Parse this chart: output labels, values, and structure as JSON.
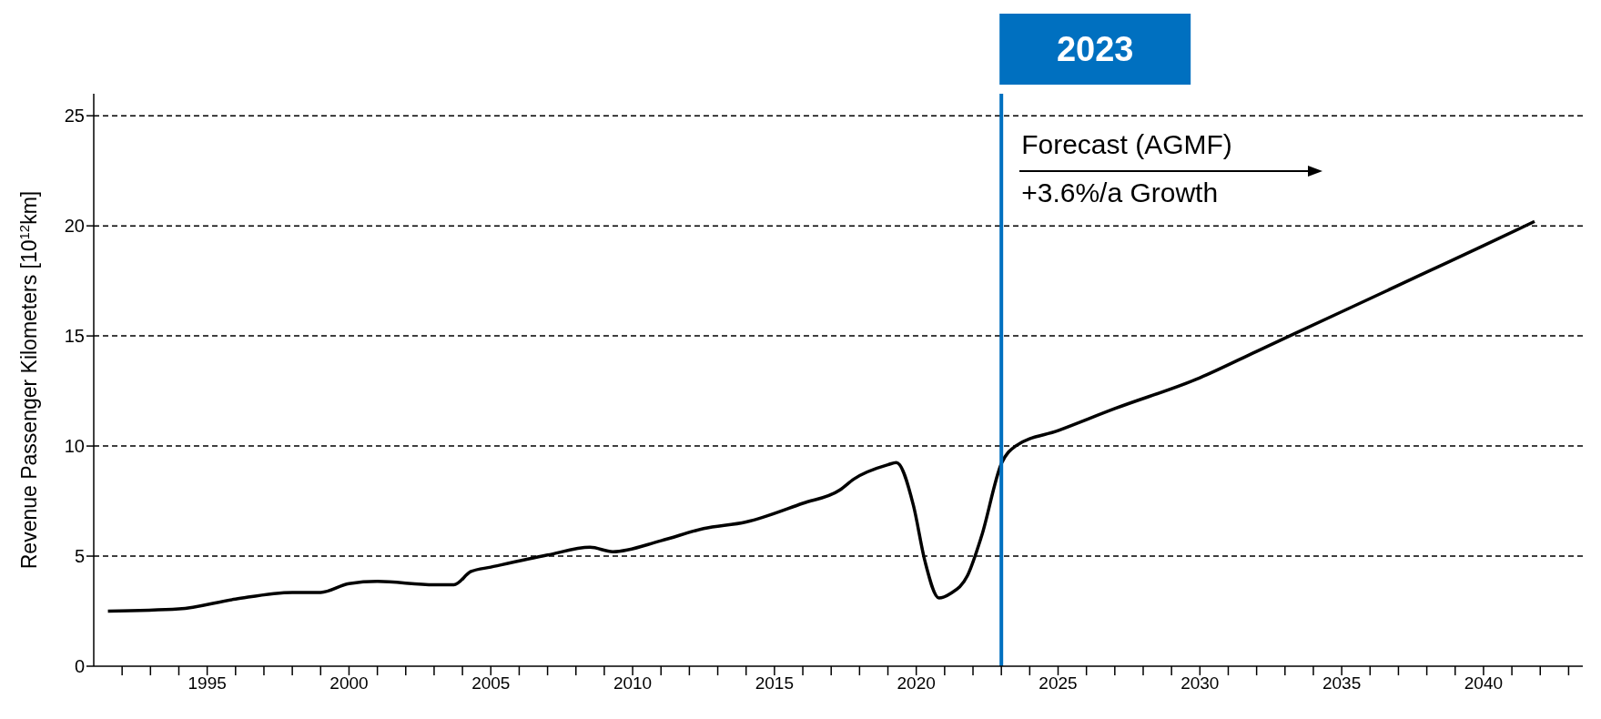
{
  "chart_data": {
    "type": "line",
    "ylabel": "Revenue Passenger Kilometers [10$^{12}$km]",
    "x": [
      1991.5,
      1994,
      1996,
      1998,
      1999,
      2000,
      2001,
      2003,
      2003.7,
      2004.3,
      2005,
      2007,
      2008.5,
      2009.3,
      2011,
      2012.5,
      2014,
      2016,
      2017.3,
      2017.8,
      2019,
      2019.3,
      2019.9,
      2020.3,
      2020.8,
      2021.2,
      2021.8,
      2022.3,
      2023,
      2023.5,
      2025,
      2027,
      2030,
      2032,
      2035,
      2038,
      2040,
      2041.8
    ],
    "series": [
      {
        "color": "#000000",
        "values": [
          2.5,
          2.6,
          3.05,
          3.35,
          3.35,
          3.75,
          3.85,
          3.7,
          3.7,
          4.3,
          4.5,
          5.05,
          5.4,
          5.2,
          5.7,
          6.25,
          6.55,
          7.4,
          8.0,
          8.5,
          9.15,
          9.25,
          7.3,
          4.8,
          3.1,
          3.3,
          4.1,
          5.9,
          9.2,
          10.0,
          10.7,
          11.7,
          13.1,
          14.3,
          16.1,
          17.9,
          19.1,
          20.2
        ]
      }
    ],
    "xlim": [
      1991,
      2043.5
    ],
    "xticks": [
      {
        "value": 1992,
        "label": null
      },
      {
        "value": 1993,
        "label": null
      },
      {
        "value": 1994,
        "label": null
      },
      1995,
      {
        "value": 1996,
        "label": null
      },
      {
        "value": 1997,
        "label": null
      },
      {
        "value": 1998,
        "label": null
      },
      {
        "value": 1999,
        "label": null
      },
      2000,
      {
        "value": 2001,
        "label": null
      },
      {
        "value": 2002,
        "label": null
      },
      {
        "value": 2003,
        "label": null
      },
      {
        "value": 2004,
        "label": null
      },
      2005,
      {
        "value": 2006,
        "label": null
      },
      {
        "value": 2007,
        "label": null
      },
      {
        "value": 2008,
        "label": null
      },
      {
        "value": 2009,
        "label": null
      },
      2010,
      {
        "value": 2011,
        "label": null
      },
      {
        "value": 2012,
        "label": null
      },
      {
        "value": 2013,
        "label": null
      },
      {
        "value": 2014,
        "label": null
      },
      2015,
      {
        "value": 2016,
        "label": null
      },
      {
        "value": 2017,
        "label": null
      },
      {
        "value": 2018,
        "label": null
      },
      {
        "value": 2019,
        "label": null
      },
      2020,
      {
        "value": 2021,
        "label": null
      },
      {
        "value": 2022,
        "label": null
      },
      {
        "value": 2023,
        "label": null
      },
      {
        "value": 2024,
        "label": null
      },
      2025,
      {
        "value": 2026,
        "label": null
      },
      {
        "value": 2027,
        "label": null
      },
      {
        "value": 2028,
        "label": null
      },
      {
        "value": 2029,
        "label": null
      },
      2030,
      {
        "value": 2031,
        "label": null
      },
      {
        "value": 2032,
        "label": null
      },
      {
        "value": 2033,
        "label": null
      },
      {
        "value": 2034,
        "label": null
      },
      2035,
      {
        "value": 2036,
        "label": null
      },
      {
        "value": 2037,
        "label": null
      },
      {
        "value": 2038,
        "label": null
      },
      {
        "value": 2039,
        "label": null
      },
      2040,
      {
        "value": 2041,
        "label": null
      },
      {
        "value": 2042,
        "label": null
      },
      {
        "value": 2043,
        "label": null
      }
    ],
    "ylim": [
      0,
      26
    ],
    "yticks": [
      0,
      5,
      10,
      15,
      20,
      25
    ],
    "grid": "y",
    "ref_lines": [
      {
        "axis": "x",
        "value": 2023,
        "label": "2023",
        "color": "#0070c0"
      }
    ],
    "annotations": [
      "Forecast (AGMF)",
      "+3.6%/a Growth"
    ]
  }
}
